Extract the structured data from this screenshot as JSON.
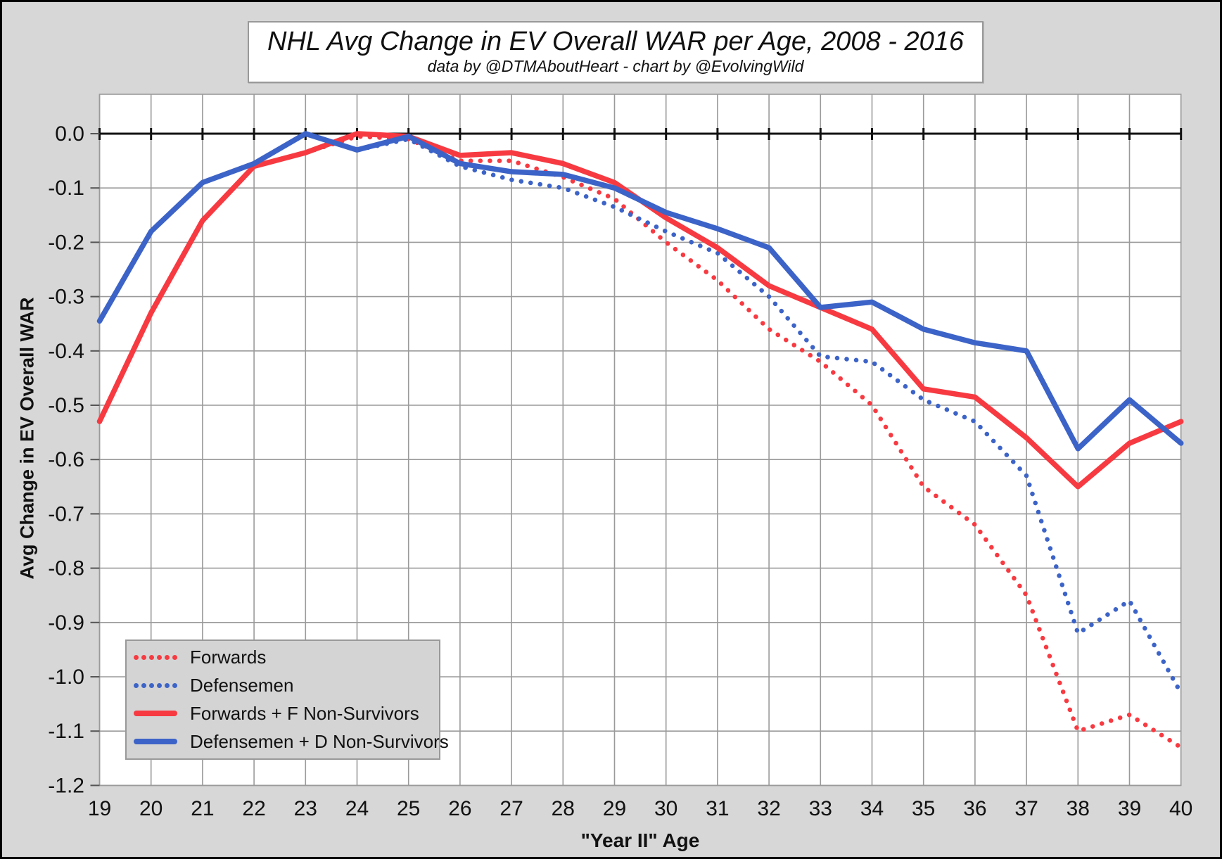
{
  "chart_data": {
    "type": "line",
    "title": "NHL Avg Change in EV Overall WAR per Age, 2008 - 2016",
    "subtitle": "data by @DTMAboutHeart - chart by @EvolvingWild",
    "xlabel": "\"Year II\" Age",
    "ylabel": "Avg Change in EV Overall WAR",
    "x": [
      19,
      20,
      21,
      22,
      23,
      24,
      25,
      26,
      27,
      28,
      29,
      30,
      31,
      32,
      33,
      34,
      35,
      36,
      37,
      38,
      39,
      40
    ],
    "ylim": [
      -1.2,
      0.072
    ],
    "ytick_labels": [
      "0.0",
      "-0.1",
      "-0.2",
      "-0.3",
      "-0.4",
      "-0.5",
      "-0.6",
      "-0.7",
      "-0.8",
      "-0.9",
      "-1.0",
      "-1.1",
      "-1.2"
    ],
    "grid": true,
    "legend_position": "bottom-left",
    "colors": {
      "red": "#f73a41",
      "blue": "#3c63c7",
      "grid": "#9a9a9a",
      "axis": "#111111",
      "plot_bg": "#ffffff",
      "outer_bg": "#d7d7d7"
    },
    "series": [
      {
        "name": "Forwards",
        "color": "#f73a41",
        "style": "dotted",
        "values": [
          -0.53,
          -0.33,
          -0.16,
          -0.06,
          -0.035,
          -0.005,
          -0.01,
          -0.05,
          -0.05,
          -0.08,
          -0.12,
          -0.2,
          -0.27,
          -0.36,
          -0.42,
          -0.5,
          -0.65,
          -0.72,
          -0.85,
          -1.1,
          -1.07,
          -1.13
        ]
      },
      {
        "name": "Defensemen",
        "color": "#3c63c7",
        "style": "dotted",
        "values": [
          -0.345,
          -0.18,
          -0.09,
          -0.055,
          0,
          -0.03,
          -0.01,
          -0.06,
          -0.085,
          -0.1,
          -0.135,
          -0.18,
          -0.22,
          -0.3,
          -0.41,
          -0.42,
          -0.49,
          -0.53,
          -0.63,
          -0.92,
          -0.86,
          -1.03
        ]
      },
      {
        "name": "Forwards + F Non-Survivors",
        "color": "#f73a41",
        "style": "solid",
        "values": [
          -0.53,
          -0.33,
          -0.16,
          -0.06,
          -0.035,
          0,
          -0.005,
          -0.04,
          -0.035,
          -0.055,
          -0.09,
          -0.155,
          -0.21,
          -0.28,
          -0.32,
          -0.36,
          -0.47,
          -0.485,
          -0.56,
          -0.65,
          -0.57,
          -0.53
        ]
      },
      {
        "name": "Defensemen + D Non-Survivors",
        "color": "#3c63c7",
        "style": "solid",
        "values": [
          -0.345,
          -0.18,
          -0.09,
          -0.055,
          0,
          -0.03,
          -0.005,
          -0.055,
          -0.07,
          -0.075,
          -0.1,
          -0.145,
          -0.175,
          -0.21,
          -0.32,
          -0.31,
          -0.36,
          -0.385,
          -0.4,
          -0.58,
          -0.49,
          -0.57
        ]
      }
    ]
  }
}
